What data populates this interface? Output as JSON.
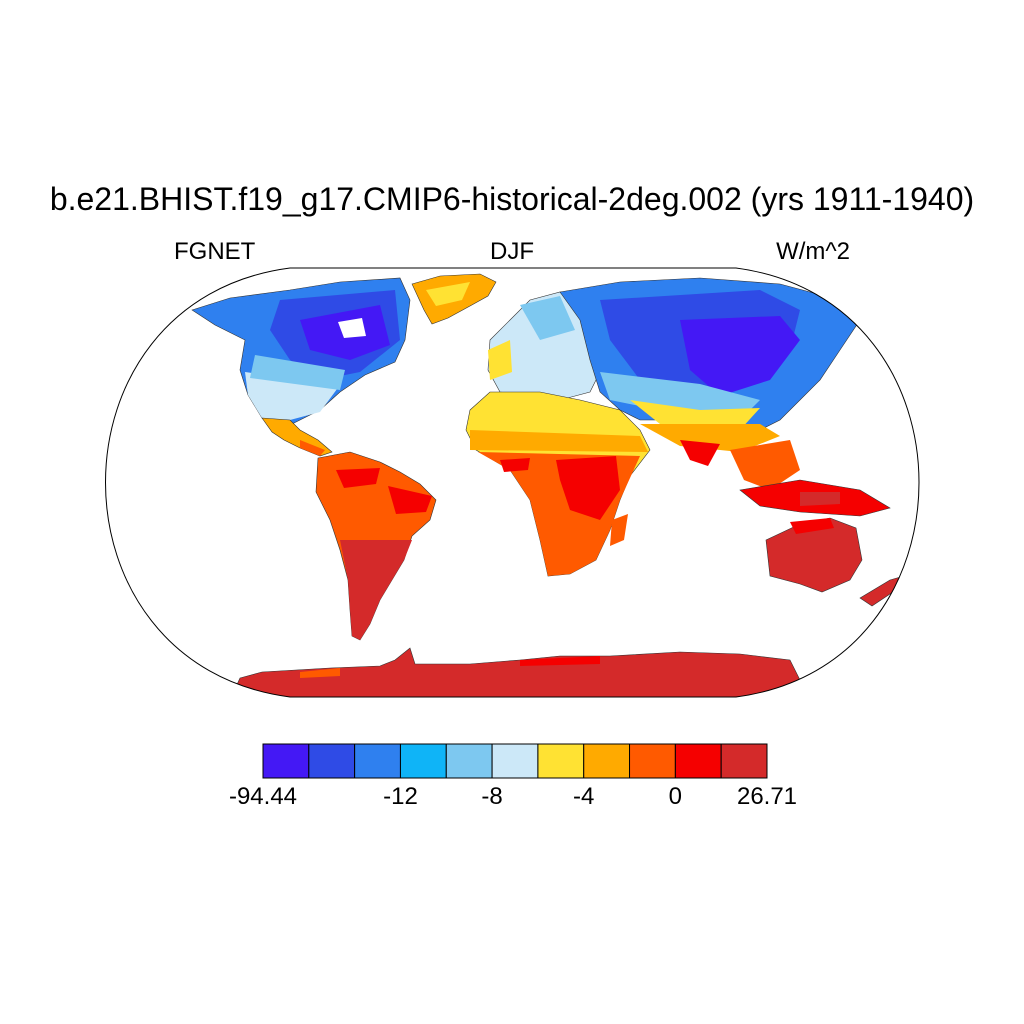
{
  "title": "b.e21.BHIST.f19_g17.CMIP6-historical-2deg.002 (yrs 1911-1940)",
  "left_subtitle": "FGNET",
  "center_subtitle": "DJF",
  "right_subtitle": "W/m^2",
  "colorbar": {
    "colors": [
      "#4418f5",
      "#2f4be6",
      "#2f80ef",
      "#0fb4f7",
      "#7dc8f0",
      "#cce8f8",
      "#ffe233",
      "#ffaa00",
      "#ff5a00",
      "#f50000",
      "#d42a2a"
    ],
    "labels": [
      {
        "text": "-94.44",
        "boundary": 0
      },
      {
        "text": "-12",
        "boundary": 3
      },
      {
        "text": "-8",
        "boundary": 5
      },
      {
        "text": "-4",
        "boundary": 7
      },
      {
        "text": "0",
        "boundary": 9
      },
      {
        "text": "26.71",
        "boundary": 11
      }
    ]
  }
}
